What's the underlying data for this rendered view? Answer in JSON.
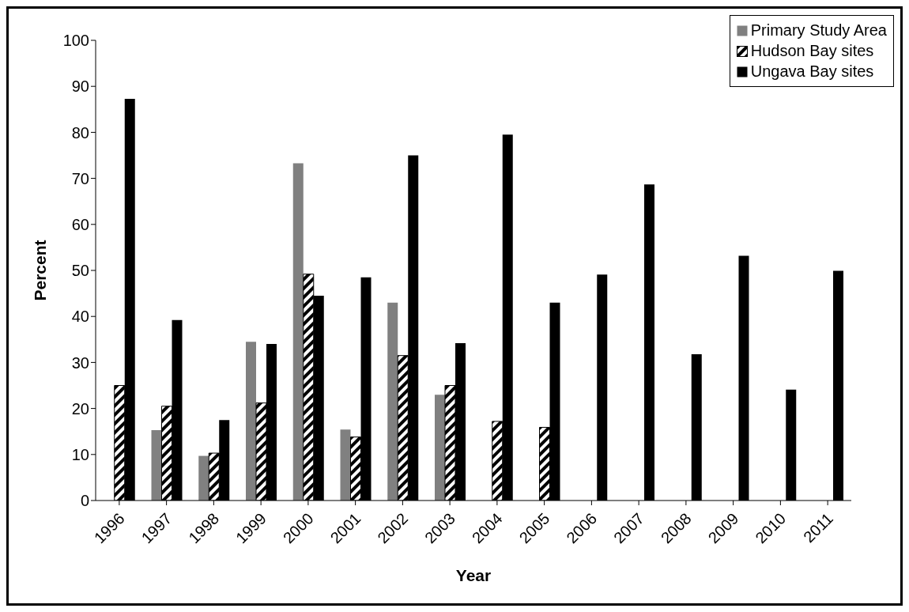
{
  "chart_data": {
    "type": "bar",
    "xlabel": "Year",
    "ylabel": "Percent",
    "categories": [
      "1996",
      "1997",
      "1998",
      "1999",
      "2000",
      "2001",
      "2002",
      "2003",
      "2004",
      "2005",
      "2006",
      "2007",
      "2008",
      "2009",
      "2010",
      "2011"
    ],
    "series": [
      {
        "name": "Primary Study Area",
        "color": "#808080",
        "values": [
          null,
          15.3,
          9.7,
          34.5,
          73.3,
          15.4,
          43,
          23,
          null,
          null,
          null,
          null,
          null,
          null,
          null,
          null
        ]
      },
      {
        "name": "Hudson Bay sites",
        "color": "#000000",
        "values": [
          25,
          20.5,
          10.3,
          21.2,
          49.2,
          13.8,
          31.5,
          25,
          17.2,
          15.9,
          null,
          null,
          null,
          null,
          null,
          null
        ]
      },
      {
        "name": "Ungava Bay sites",
        "color": "#000000",
        "values": [
          87.3,
          39.2,
          17.5,
          34,
          44.5,
          48.5,
          75,
          34.2,
          79.5,
          43,
          49.1,
          68.7,
          31.8,
          53.2,
          24.1,
          49.9
        ]
      }
    ],
    "ylim": [
      0,
      100
    ],
    "yticks": [
      0,
      10,
      20,
      30,
      40,
      50,
      60,
      70,
      80,
      90,
      100
    ],
    "legend": "top right"
  }
}
